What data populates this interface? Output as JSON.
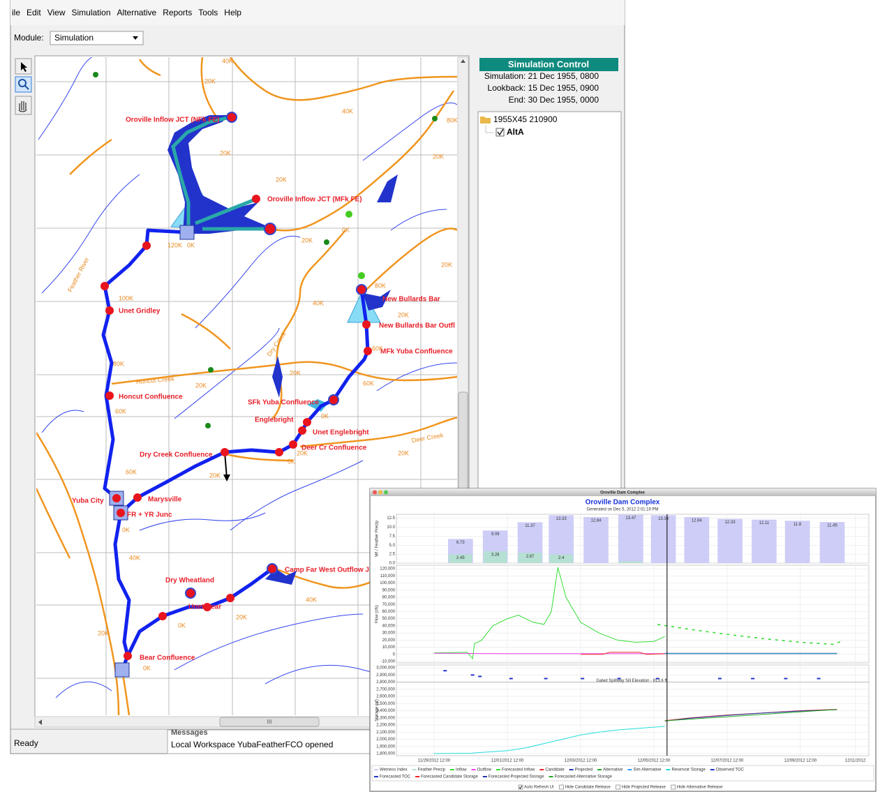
{
  "menu": [
    "ile",
    "Edit",
    "View",
    "Simulation",
    "Alternative",
    "Reports",
    "Tools",
    "Help"
  ],
  "module": {
    "label": "Module:",
    "value": "Simulation"
  },
  "map": {
    "nodes": [
      "Oroville Inflow JCT (NFk FE)",
      "Oroville Inflow JCT (MFk FE)",
      "Unet Gridley",
      "New Bullards Bar",
      "New Bullards Bar Outfl",
      "MFk Yuba Confluence",
      "Honcut Confluence",
      "SFk Yuba Confluence",
      "Englebright",
      "Unet Englebright",
      "Deer Cr Confluence",
      "Dry Creek Confluence",
      "Yuba City",
      "Marysville",
      "FR + YR Junc",
      "Dry Wheatland",
      "Unet Bear",
      "Camp Far West Outflow J",
      "Bear Confluence"
    ],
    "rivers": [
      "Feather River",
      "Honcut Creek",
      "Dry Creek",
      "Deer Creek"
    ],
    "distances": [
      "40K",
      "20K",
      "40K",
      "20K",
      "20K",
      "120K",
      "0K",
      "0K",
      "20K",
      "80K",
      "20K",
      "100K",
      "80K",
      "40K",
      "20K",
      "20K",
      "60K",
      "60K",
      "80K",
      "20K",
      "20K",
      "0K",
      "60K",
      "20K",
      "0K",
      "20K",
      "20K",
      "60K",
      "0K",
      "40K",
      "20K",
      "20K",
      "0K",
      "0K",
      "40K"
    ],
    "scroll_grip": "III"
  },
  "simulation_control": {
    "title": "Simulation Control",
    "lines": [
      "Simulation: 21 Dec 1955, 0800",
      "Lookback: 15 Dec 1955, 0900",
      "End: 30 Dec 1955, 0000"
    ],
    "tree": {
      "folder": "1955X45 210900",
      "item": "AltA"
    }
  },
  "status": {
    "ready": "Ready",
    "messages_title": "Messages",
    "message": "Local Workspace YubaFeatherFCO opened"
  },
  "chart_window": {
    "window_title": "Oroville Dam Complex",
    "title": "Oroville Dam Complex",
    "subtitle": "Generated on Dec 5, 2012 2:01:19 PM",
    "xlim": [
      -1.03,
      11.87
    ],
    "xticks": [
      {
        "value": 0,
        "label": "11/29/2012 12:00"
      },
      {
        "value": 2,
        "label": "12/01/2012 12:00"
      },
      {
        "value": 4,
        "label": "12/03/2012 12:00"
      },
      {
        "value": 6,
        "label": "12/05/2012 12:00"
      },
      {
        "value": 8,
        "label": "12/07/2012 12:00"
      },
      {
        "value": 10,
        "label": "12/09/2012 12:00"
      },
      {
        "value": 11.5,
        "label": "12/11/2012"
      }
    ],
    "current_time": 6.36,
    "charts": [
      {
        "type": "bar",
        "ylabel": "WI / Feather Precip",
        "ylim": [
          0,
          13.6
        ],
        "yticks": [
          {
            "value": 0,
            "label": "0.0"
          },
          2.5,
          {
            "value": 5,
            "label": "5.0"
          },
          7.5,
          {
            "value": 10,
            "label": "10.0"
          },
          12.5
        ],
        "x": [
          0.72,
          1.67,
          2.62,
          3.47,
          4.42,
          5.37,
          6.26,
          7.17,
          8.08,
          9.01,
          9.92,
          10.87
        ],
        "series": [
          {
            "name": "Wetness Index",
            "color": "#cdcdf7",
            "values": [
              6.73,
              9.09,
              11.37,
              13.33,
              12.84,
              13.47,
              13.34,
              12.84,
              12.33,
              12.11,
              11.8,
              11.45
            ]
          },
          {
            "name": "Feather Precip",
            "color": "#b5e0d3",
            "values": [
              2.45,
              3.28,
              2.87,
              2.4,
              0,
              0.5,
              0,
              0,
              0,
              0,
              0,
              0
            ],
            "value_labels": [
              "2.45",
              "3.28",
              "2.87",
              "2.4",
              null,
              null,
              null,
              null,
              null,
              null,
              null,
              null
            ]
          }
        ]
      },
      {
        "type": "line",
        "ylabel": "Flow (cfs)",
        "ylim": [
          -12000,
          125000
        ],
        "yticks": [
          {
            "value": -10000,
            "label": "-10,000"
          },
          0,
          {
            "value": 10000,
            "label": "10,000"
          },
          {
            "value": 20000,
            "label": "20,000"
          },
          {
            "value": 30000,
            "label": "30,000"
          },
          {
            "value": 40000,
            "label": "40,000"
          },
          {
            "value": 50000,
            "label": "50,000"
          },
          {
            "value": 60000,
            "label": "60,000"
          },
          {
            "value": 70000,
            "label": "70,000"
          },
          {
            "value": 80000,
            "label": "80,000"
          },
          {
            "value": 90000,
            "label": "90,000"
          },
          {
            "value": 100000,
            "label": "100,000"
          },
          {
            "value": 110000,
            "label": "110,000"
          },
          {
            "value": 120000,
            "label": "120,000"
          }
        ],
        "series": [
          {
            "name": "Inflow",
            "color": "#33dd33",
            "x": [
              0,
              0.9,
              1.05,
              1.1,
              1.3,
              1.6,
              2,
              2.3,
              2.7,
              3,
              3.2,
              3.38,
              3.6,
              4,
              4.5,
              5,
              5.5,
              6,
              6.3
            ],
            "values": [
              2000,
              3000,
              -6000,
              15000,
              20000,
              40000,
              50000,
              55000,
              45000,
              42000,
              60000,
              122000,
              80000,
              45000,
              30000,
              20000,
              17000,
              18000,
              25000
            ]
          },
          {
            "name": "Outflow",
            "color": "#ee44ee",
            "x": [
              0,
              1,
              2,
              3,
              4,
              5,
              6,
              6.3
            ],
            "values": [
              1500,
              1200,
              1000,
              1000,
              1000,
              1000,
              1000,
              1000
            ]
          },
          {
            "name": "Forecasted Inflow",
            "color": "#33dd33",
            "dashed": true,
            "x": [
              6.1,
              7,
              8,
              9,
              10,
              10.9,
              11.1
            ],
            "values": [
              42000,
              35000,
              28000,
              22000,
              17000,
              14000,
              18000
            ]
          },
          {
            "name": "Candidate",
            "color": "#ee2222",
            "x": [
              4,
              4.6,
              4.8,
              5.6,
              5.8,
              6.3,
              11
            ],
            "values": [
              0,
              0,
              3000,
              3000,
              0,
              1000,
              1000
            ]
          },
          {
            "name": "Projected",
            "color": "#2233aa",
            "x": [
              6.3,
              11
            ],
            "values": [
              1500,
              1500
            ]
          },
          {
            "name": "Alternative",
            "color": "#22aa22",
            "x": [
              6.3,
              11
            ],
            "values": [
              1200,
              1200
            ]
          },
          {
            "name": "Sim Alternative",
            "color": "#3399ff",
            "x": [
              6.3,
              11
            ],
            "values": [
              1000,
              1000
            ]
          }
        ]
      },
      {
        "type": "line",
        "ylabel": "Storage (af)",
        "ylim": [
          1770000,
          3040000
        ],
        "yticks": [
          {
            "value": 1800000,
            "label": "1,800,000"
          },
          {
            "value": 1900000,
            "label": "1,900,000"
          },
          {
            "value": 2000000,
            "label": "2,000,000"
          },
          {
            "value": 2100000,
            "label": "2,100,000"
          },
          {
            "value": 2200000,
            "label": "2,200,000"
          },
          {
            "value": 2300000,
            "label": "2,300,000"
          },
          {
            "value": 2400000,
            "label": "2,400,000"
          },
          {
            "value": 2500000,
            "label": "2,500,000"
          },
          {
            "value": 2600000,
            "label": "2,600,000"
          },
          {
            "value": 2700000,
            "label": "2,700,000"
          },
          {
            "value": 2800000,
            "label": "2,800,000"
          },
          {
            "value": 2900000,
            "label": "2,900,000"
          },
          {
            "value": 3000000,
            "label": "3,000,000"
          }
        ],
        "annotation": "Gated Spillway Sill Elevation - 813.6 ft",
        "annotation_value": 2800000,
        "series": [
          {
            "name": "Reservoir Storage",
            "color": "#22dddd",
            "x": [
              0,
              1,
              2,
              2.5,
              3,
              3.5,
              4,
              4.5,
              5,
              5.5,
              6,
              6.3
            ],
            "values": [
              1800000,
              1805000,
              1840000,
              1880000,
              1940000,
              2000000,
              2060000,
              2100000,
              2130000,
              2150000,
              2170000,
              2180000
            ]
          },
          {
            "name": "Observed TOC",
            "color": "#2233cc",
            "marker": true,
            "x": [
              0.3,
              1.05,
              1.25,
              2.1,
              3.05,
              4.05,
              5.05,
              6.1
            ],
            "values": [
              2960000,
              2900000,
              2880000,
              2850000,
              2850000,
              2850000,
              2850000,
              2850000
            ]
          },
          {
            "name": "Forecasted TOC",
            "color": "#2233cc",
            "marker": true,
            "x": [
              7.8,
              8.7,
              9.6,
              10.5
            ],
            "values": [
              2850000,
              2850000,
              2850000,
              2850000
            ]
          },
          {
            "name": "Forecasted Candidate Storage",
            "color": "#ee2222",
            "x": [
              6.3,
              7,
              8,
              9,
              10,
              11
            ],
            "values": [
              2260000,
              2300000,
              2340000,
              2370000,
              2400000,
              2420000
            ]
          },
          {
            "name": "Forecasted Projected Storage",
            "color": "#2233aa",
            "x": [
              6.3,
              7,
              8,
              9,
              10,
              11
            ],
            "values": [
              2255000,
              2295000,
              2335000,
              2368000,
              2395000,
              2415000
            ]
          },
          {
            "name": "Forecasted Alternative Storage",
            "color": "#22aa22",
            "x": [
              6.3,
              11
            ],
            "values": [
              2258000,
              2418000
            ]
          }
        ]
      }
    ],
    "checkboxes": [
      {
        "label": "Auto Refresh UI",
        "checked": true
      },
      {
        "label": "Hide Candidate Release",
        "checked": false
      },
      {
        "label": "Hide Projected Release",
        "checked": false
      },
      {
        "label": "Hide Alternative Release",
        "checked": false
      }
    ]
  }
}
